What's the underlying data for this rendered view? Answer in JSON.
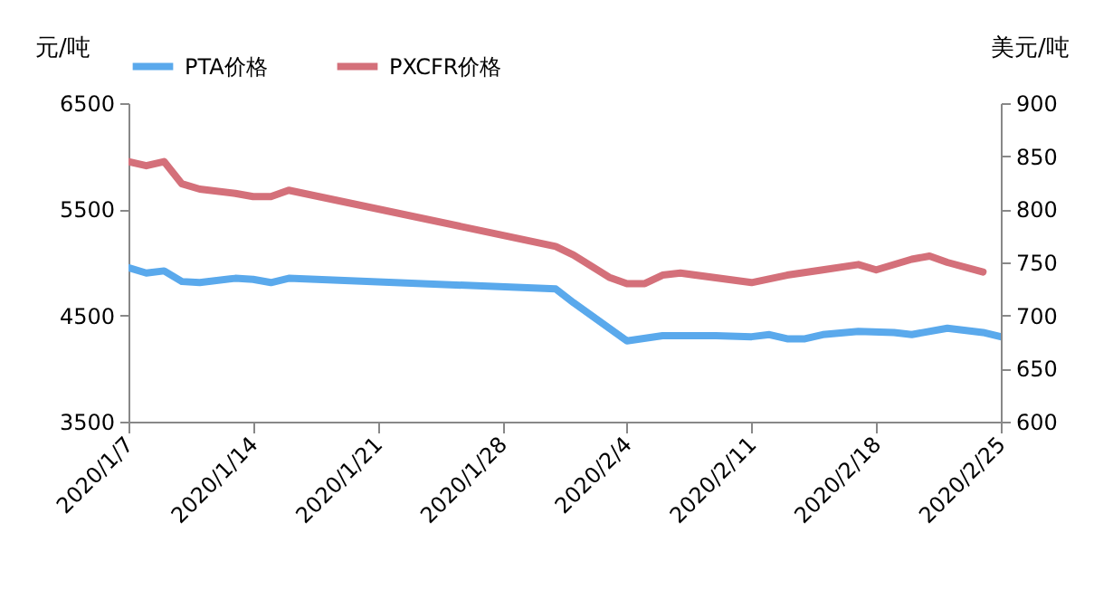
{
  "chart_data": {
    "type": "line",
    "ylabel": "元/吨",
    "y2label": "美元/吨",
    "legend": "top",
    "xlim": [
      "2020-01-07",
      "2020-02-25"
    ],
    "xticks": [
      {
        "value": "2020-01-07",
        "label": "2020/1/7"
      },
      {
        "value": "2020-01-14",
        "label": "2020/1/14"
      },
      {
        "value": "2020-01-21",
        "label": "2020/1/21"
      },
      {
        "value": "2020-01-28",
        "label": "2020/1/28"
      },
      {
        "value": "2020-02-04",
        "label": "2020/2/4"
      },
      {
        "value": "2020-02-11",
        "label": "2020/2/11"
      },
      {
        "value": "2020-02-18",
        "label": "2020/2/18"
      },
      {
        "value": "2020-02-25",
        "label": "2020/2/25"
      }
    ],
    "ylim": [
      3500,
      6500
    ],
    "yticks": [
      3500,
      4500,
      5500,
      6500
    ],
    "y2lim": [
      600,
      900
    ],
    "y2ticks": [
      600,
      650,
      700,
      750,
      800,
      850,
      900
    ],
    "series": [
      {
        "name": "PTA价格",
        "color": "#5aa9ec",
        "x": [
          "2020-01-07",
          "2020-01-08",
          "2020-01-09",
          "2020-01-10",
          "2020-01-11",
          "2020-01-13",
          "2020-01-14",
          "2020-01-15",
          "2020-01-16",
          "2020-01-31",
          "2020-02-01",
          "2020-02-04",
          "2020-02-06",
          "2020-02-09",
          "2020-02-11",
          "2020-02-12",
          "2020-02-13",
          "2020-02-14",
          "2020-02-15",
          "2020-02-17",
          "2020-02-19",
          "2020-02-20",
          "2020-02-22",
          "2020-02-24",
          "2020-02-25"
        ],
        "values": [
          4950,
          4900,
          4920,
          4820,
          4810,
          4850,
          4840,
          4810,
          4850,
          4750,
          4620,
          4260,
          4310,
          4310,
          4300,
          4320,
          4280,
          4280,
          4320,
          4350,
          4340,
          4320,
          4380,
          4340,
          4300
        ]
      },
      {
        "name": "PXCFR价格",
        "color": "#d4707a",
        "axis": "y2",
        "x": [
          "2020-01-07",
          "2020-01-08",
          "2020-01-09",
          "2020-01-10",
          "2020-01-11",
          "2020-01-13",
          "2020-01-14",
          "2020-01-15",
          "2020-01-16",
          "2020-01-31",
          "2020-02-01",
          "2020-02-03",
          "2020-02-04",
          "2020-02-05",
          "2020-02-06",
          "2020-02-07",
          "2020-02-11",
          "2020-02-13",
          "2020-02-15",
          "2020-02-17",
          "2020-02-18",
          "2020-02-20",
          "2020-02-21",
          "2020-02-22",
          "2020-02-24"
        ],
        "values": [
          845,
          841,
          845,
          824,
          819,
          815,
          812,
          812,
          818,
          765,
          757,
          736,
          730,
          730,
          738,
          740,
          731,
          738,
          743,
          748,
          743,
          753,
          756,
          750,
          741
        ]
      }
    ]
  }
}
